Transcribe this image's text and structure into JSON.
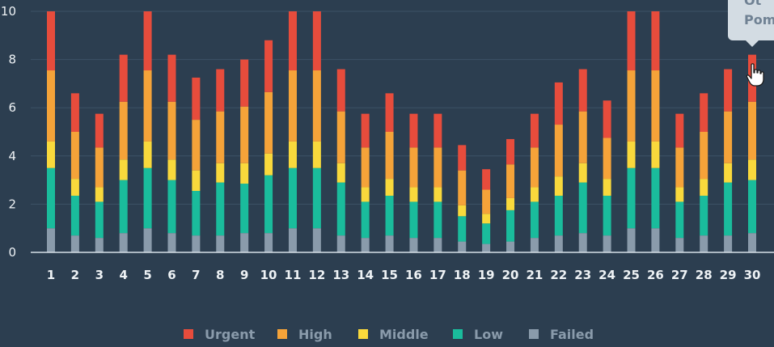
{
  "chart_data": {
    "type": "bar",
    "stacked": true,
    "categories": [
      "1",
      "2",
      "3",
      "4",
      "5",
      "6",
      "7",
      "8",
      "9",
      "10",
      "11",
      "12",
      "13",
      "14",
      "15",
      "16",
      "17",
      "18",
      "19",
      "20",
      "21",
      "22",
      "23",
      "24",
      "25",
      "26",
      "27",
      "28",
      "29",
      "30"
    ],
    "ylim": [
      0,
      10
    ],
    "yticks": [
      "0",
      "2",
      "4",
      "6",
      "8",
      "10"
    ],
    "grid": true,
    "legend_position": "bottom",
    "series": [
      {
        "name": "Failed",
        "color": "#8a9bab",
        "values": [
          1.0,
          0.7,
          0.6,
          0.8,
          1.0,
          0.8,
          0.7,
          0.7,
          0.8,
          0.8,
          1.0,
          1.0,
          0.7,
          0.6,
          0.7,
          0.6,
          0.6,
          0.45,
          0.35,
          0.45,
          0.6,
          0.7,
          0.8,
          0.7,
          1.0,
          1.0,
          0.6,
          0.7,
          0.7,
          0.8
        ]
      },
      {
        "name": "Low",
        "color": "#1abc9c",
        "values": [
          2.5,
          1.65,
          1.5,
          2.2,
          2.5,
          2.2,
          1.85,
          2.2,
          2.05,
          2.4,
          2.5,
          2.5,
          2.2,
          1.5,
          1.65,
          1.5,
          1.5,
          1.05,
          0.85,
          1.3,
          1.5,
          1.65,
          2.1,
          1.65,
          2.5,
          2.5,
          1.5,
          1.65,
          2.2,
          2.2
        ]
      },
      {
        "name": "Middle",
        "color": "#f9d93c",
        "values": [
          1.1,
          0.7,
          0.6,
          0.85,
          1.1,
          0.85,
          0.85,
          0.8,
          0.85,
          0.9,
          1.1,
          1.1,
          0.8,
          0.6,
          0.7,
          0.6,
          0.6,
          0.45,
          0.4,
          0.5,
          0.6,
          0.8,
          0.8,
          0.7,
          1.1,
          1.1,
          0.6,
          0.7,
          0.8,
          0.85
        ]
      },
      {
        "name": "High",
        "color": "#f5a339",
        "values": [
          2.95,
          1.95,
          1.65,
          2.4,
          2.95,
          2.4,
          2.1,
          2.15,
          2.35,
          2.55,
          2.95,
          2.95,
          2.15,
          1.65,
          1.95,
          1.65,
          1.65,
          1.45,
          1.0,
          1.4,
          1.65,
          2.15,
          2.15,
          1.7,
          2.95,
          2.95,
          1.65,
          1.95,
          2.15,
          2.4
        ]
      },
      {
        "name": "Urgent",
        "color": "#e74c3c",
        "values": [
          2.45,
          1.6,
          1.4,
          1.95,
          2.45,
          1.95,
          1.75,
          1.75,
          1.95,
          2.15,
          2.45,
          2.45,
          1.75,
          1.4,
          1.6,
          1.4,
          1.4,
          1.05,
          0.85,
          1.05,
          1.4,
          1.75,
          1.75,
          1.55,
          2.45,
          2.45,
          1.4,
          1.6,
          1.75,
          1.95
        ]
      }
    ],
    "legend_order": [
      "Urgent",
      "High",
      "Middle",
      "Low",
      "Failed"
    ]
  },
  "tooltip": {
    "line1": "Ot",
    "line2": "Pom"
  }
}
